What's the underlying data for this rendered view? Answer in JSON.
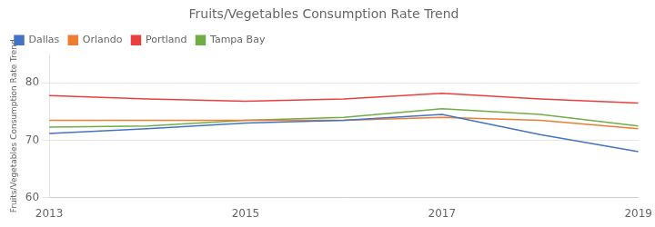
{
  "chart_data": {
    "type": "line",
    "title": "Fruits/Vegetables Consumption Rate Trend",
    "ylabel": "Fruits/Vegetables Consumption Rate Trend",
    "x": [
      2013,
      2014,
      2015,
      2016,
      2017,
      2018,
      2019
    ],
    "series": [
      {
        "name": "Dallas",
        "color": "#4472c4",
        "values": [
          71.2,
          72.0,
          73.0,
          73.5,
          74.5,
          71.0,
          68.0
        ]
      },
      {
        "name": "Orlando",
        "color": "#ed7d31",
        "values": [
          73.5,
          73.5,
          73.5,
          73.5,
          74.0,
          73.5,
          72.0
        ]
      },
      {
        "name": "Portland",
        "color": "#e84040",
        "values": [
          77.8,
          77.2,
          76.8,
          77.2,
          78.2,
          77.2,
          76.5
        ]
      },
      {
        "name": "Tampa Bay",
        "color": "#70ad47",
        "values": [
          72.3,
          72.5,
          73.5,
          74.0,
          75.5,
          74.5,
          72.5
        ]
      }
    ],
    "xlim": [
      2013,
      2019
    ],
    "ylim": [
      60,
      85
    ],
    "xticks": [
      2013,
      2015,
      2017,
      2019
    ],
    "yticks": [
      60,
      70,
      80
    ],
    "grid": "y",
    "legend": "upper left"
  }
}
